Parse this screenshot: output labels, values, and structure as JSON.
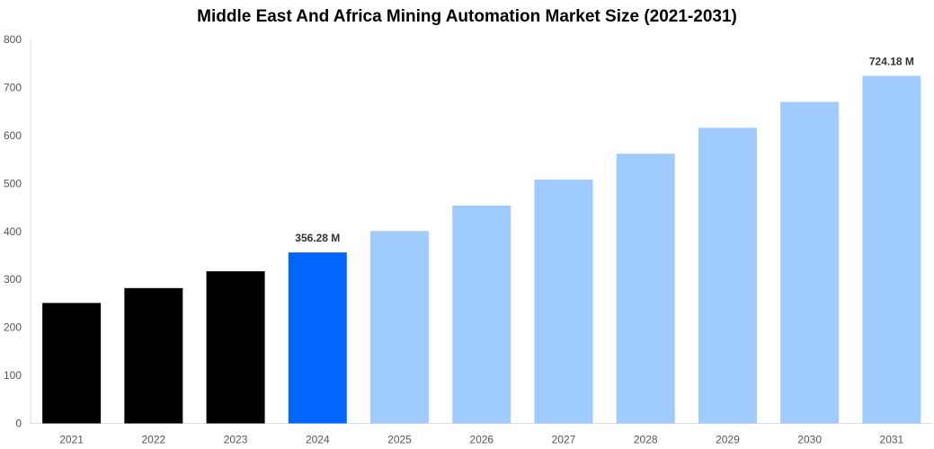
{
  "chart_data": {
    "type": "bar",
    "title": "Middle East And Africa Mining Automation Market Size (2021-2031)",
    "xlabel": "",
    "ylabel": "",
    "categories": [
      "2021",
      "2022",
      "2023",
      "2024",
      "2025",
      "2026",
      "2027",
      "2028",
      "2029",
      "2030",
      "2031"
    ],
    "values": [
      251,
      282,
      317,
      356.28,
      401,
      454,
      508,
      562,
      616,
      670,
      724.18
    ],
    "data_labels": {
      "2024": "356.28 M",
      "2031": "724.18 M"
    },
    "ylim": [
      0,
      800
    ],
    "yticks": [
      0,
      100,
      200,
      300,
      400,
      500,
      600,
      700,
      800
    ],
    "grid": false,
    "legend": "none",
    "colors": {
      "historical": "#000000",
      "current": "#0066ff",
      "forecast": "#a0cbff"
    },
    "color_by_category": [
      "historical",
      "historical",
      "historical",
      "current",
      "forecast",
      "forecast",
      "forecast",
      "forecast",
      "forecast",
      "forecast",
      "forecast"
    ]
  }
}
